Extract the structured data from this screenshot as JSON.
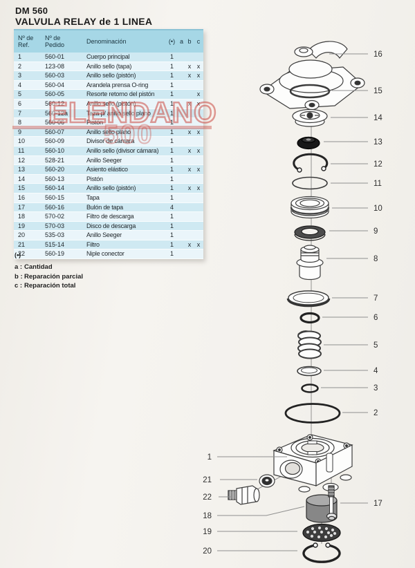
{
  "page": {
    "title_line1": "DM 560",
    "title_line2": "VALVULA RELAY de 1 LINEA"
  },
  "table": {
    "headers": {
      "ref1": "Nº de",
      "ref2": "Ref.",
      "pedido1": "Nº de",
      "pedido2": "Pedido",
      "denom": "Denominación",
      "mark": "(•)",
      "a": "a",
      "b": "b",
      "c": "c"
    },
    "rows": [
      {
        "ref": "1",
        "pedido": "560-01",
        "denom": "Cuerpo principal",
        "qty": "1",
        "a": "",
        "b": "",
        "c": ""
      },
      {
        "ref": "2",
        "pedido": "123-08",
        "denom": "Anillo sello (tapa)",
        "qty": "1",
        "a": "",
        "b": "x",
        "c": "x"
      },
      {
        "ref": "3",
        "pedido": "560-03",
        "denom": "Anillo sello (pistón)",
        "qty": "1",
        "a": "",
        "b": "x",
        "c": "x"
      },
      {
        "ref": "4",
        "pedido": "560-04",
        "denom": "Arandela prensa O-ring",
        "qty": "1",
        "a": "",
        "b": "",
        "c": ""
      },
      {
        "ref": "5",
        "pedido": "560-05",
        "denom": "Resorte retorno del pistón",
        "qty": "1",
        "a": "",
        "b": "",
        "c": "x"
      },
      {
        "ref": "6",
        "pedido": "560-12",
        "denom": "Anillo sello (pistón)",
        "qty": "1",
        "a": "",
        "b": "x",
        "c": "x"
      },
      {
        "ref": "7",
        "pedido": "560-12a",
        "denom": "Taza p/ anillo sello plano",
        "qty": "1",
        "a": "",
        "b": "",
        "c": ""
      },
      {
        "ref": "8",
        "pedido": "560-06",
        "denom": "Pistón",
        "qty": "1",
        "a": "",
        "b": "",
        "c": ""
      },
      {
        "ref": "9",
        "pedido": "560-07",
        "denom": "Anillo sello plano",
        "qty": "1",
        "a": "",
        "b": "x",
        "c": "x"
      },
      {
        "ref": "10",
        "pedido": "560-09",
        "denom": "Divisor de cámara",
        "qty": "1",
        "a": "",
        "b": "",
        "c": ""
      },
      {
        "ref": "11",
        "pedido": "560-10",
        "denom": "Anillo sello (divisor cámara)",
        "qty": "1",
        "a": "",
        "b": "x",
        "c": "x"
      },
      {
        "ref": "12",
        "pedido": "528-21",
        "denom": "Anillo Seeger",
        "qty": "1",
        "a": "",
        "b": "",
        "c": ""
      },
      {
        "ref": "13",
        "pedido": "560-20",
        "denom": "Asiento elástico",
        "qty": "1",
        "a": "",
        "b": "x",
        "c": "x"
      },
      {
        "ref": "14",
        "pedido": "560-13",
        "denom": "Pistón",
        "qty": "1",
        "a": "",
        "b": "",
        "c": ""
      },
      {
        "ref": "15",
        "pedido": "560-14",
        "denom": "Anillo sello (pistón)",
        "qty": "1",
        "a": "",
        "b": "x",
        "c": "x"
      },
      {
        "ref": "16",
        "pedido": "560-15",
        "denom": "Tapa",
        "qty": "1",
        "a": "",
        "b": "",
        "c": ""
      },
      {
        "ref": "17",
        "pedido": "560-16",
        "denom": "Bulón de tapa",
        "qty": "4",
        "a": "",
        "b": "",
        "c": ""
      },
      {
        "ref": "18",
        "pedido": "570-02",
        "denom": "Filtro de descarga",
        "qty": "1",
        "a": "",
        "b": "",
        "c": ""
      },
      {
        "ref": "19",
        "pedido": "570-03",
        "denom": "Disco de descarga",
        "qty": "1",
        "a": "",
        "b": "",
        "c": ""
      },
      {
        "ref": "20",
        "pedido": "535-03",
        "denom": "Anillo Seeger",
        "qty": "1",
        "a": "",
        "b": "",
        "c": ""
      },
      {
        "ref": "21",
        "pedido": "515-14",
        "denom": "Filtro",
        "qty": "1",
        "a": "",
        "b": "x",
        "c": "x"
      },
      {
        "ref": "22",
        "pedido": "560-19",
        "denom": "Niple conector",
        "qty": "1",
        "a": "",
        "b": "",
        "c": ""
      }
    ]
  },
  "legend": {
    "mark": "(•)",
    "items": [
      {
        "key": "a :",
        "label": "Cantidad"
      },
      {
        "key": "b :",
        "label": "Reparación parcial"
      },
      {
        "key": "c :",
        "label": "Reparación total"
      }
    ]
  },
  "watermark": {
    "line1": "ELENDANO",
    "line2": "500"
  },
  "diagram": {
    "callouts": [
      "16",
      "15",
      "14",
      "13",
      "12",
      "11",
      "10",
      "9",
      "8",
      "7",
      "6",
      "5",
      "4",
      "3",
      "2",
      "1",
      "21",
      "22",
      "18",
      "19",
      "20",
      "17"
    ]
  },
  "colors": {
    "table_header": "#a6d7e6",
    "row_light": "#cfe9f2",
    "row_lighter": "#eaf5fa",
    "watermark_red": "#c63a32",
    "line_art": "#3c3c3c"
  }
}
